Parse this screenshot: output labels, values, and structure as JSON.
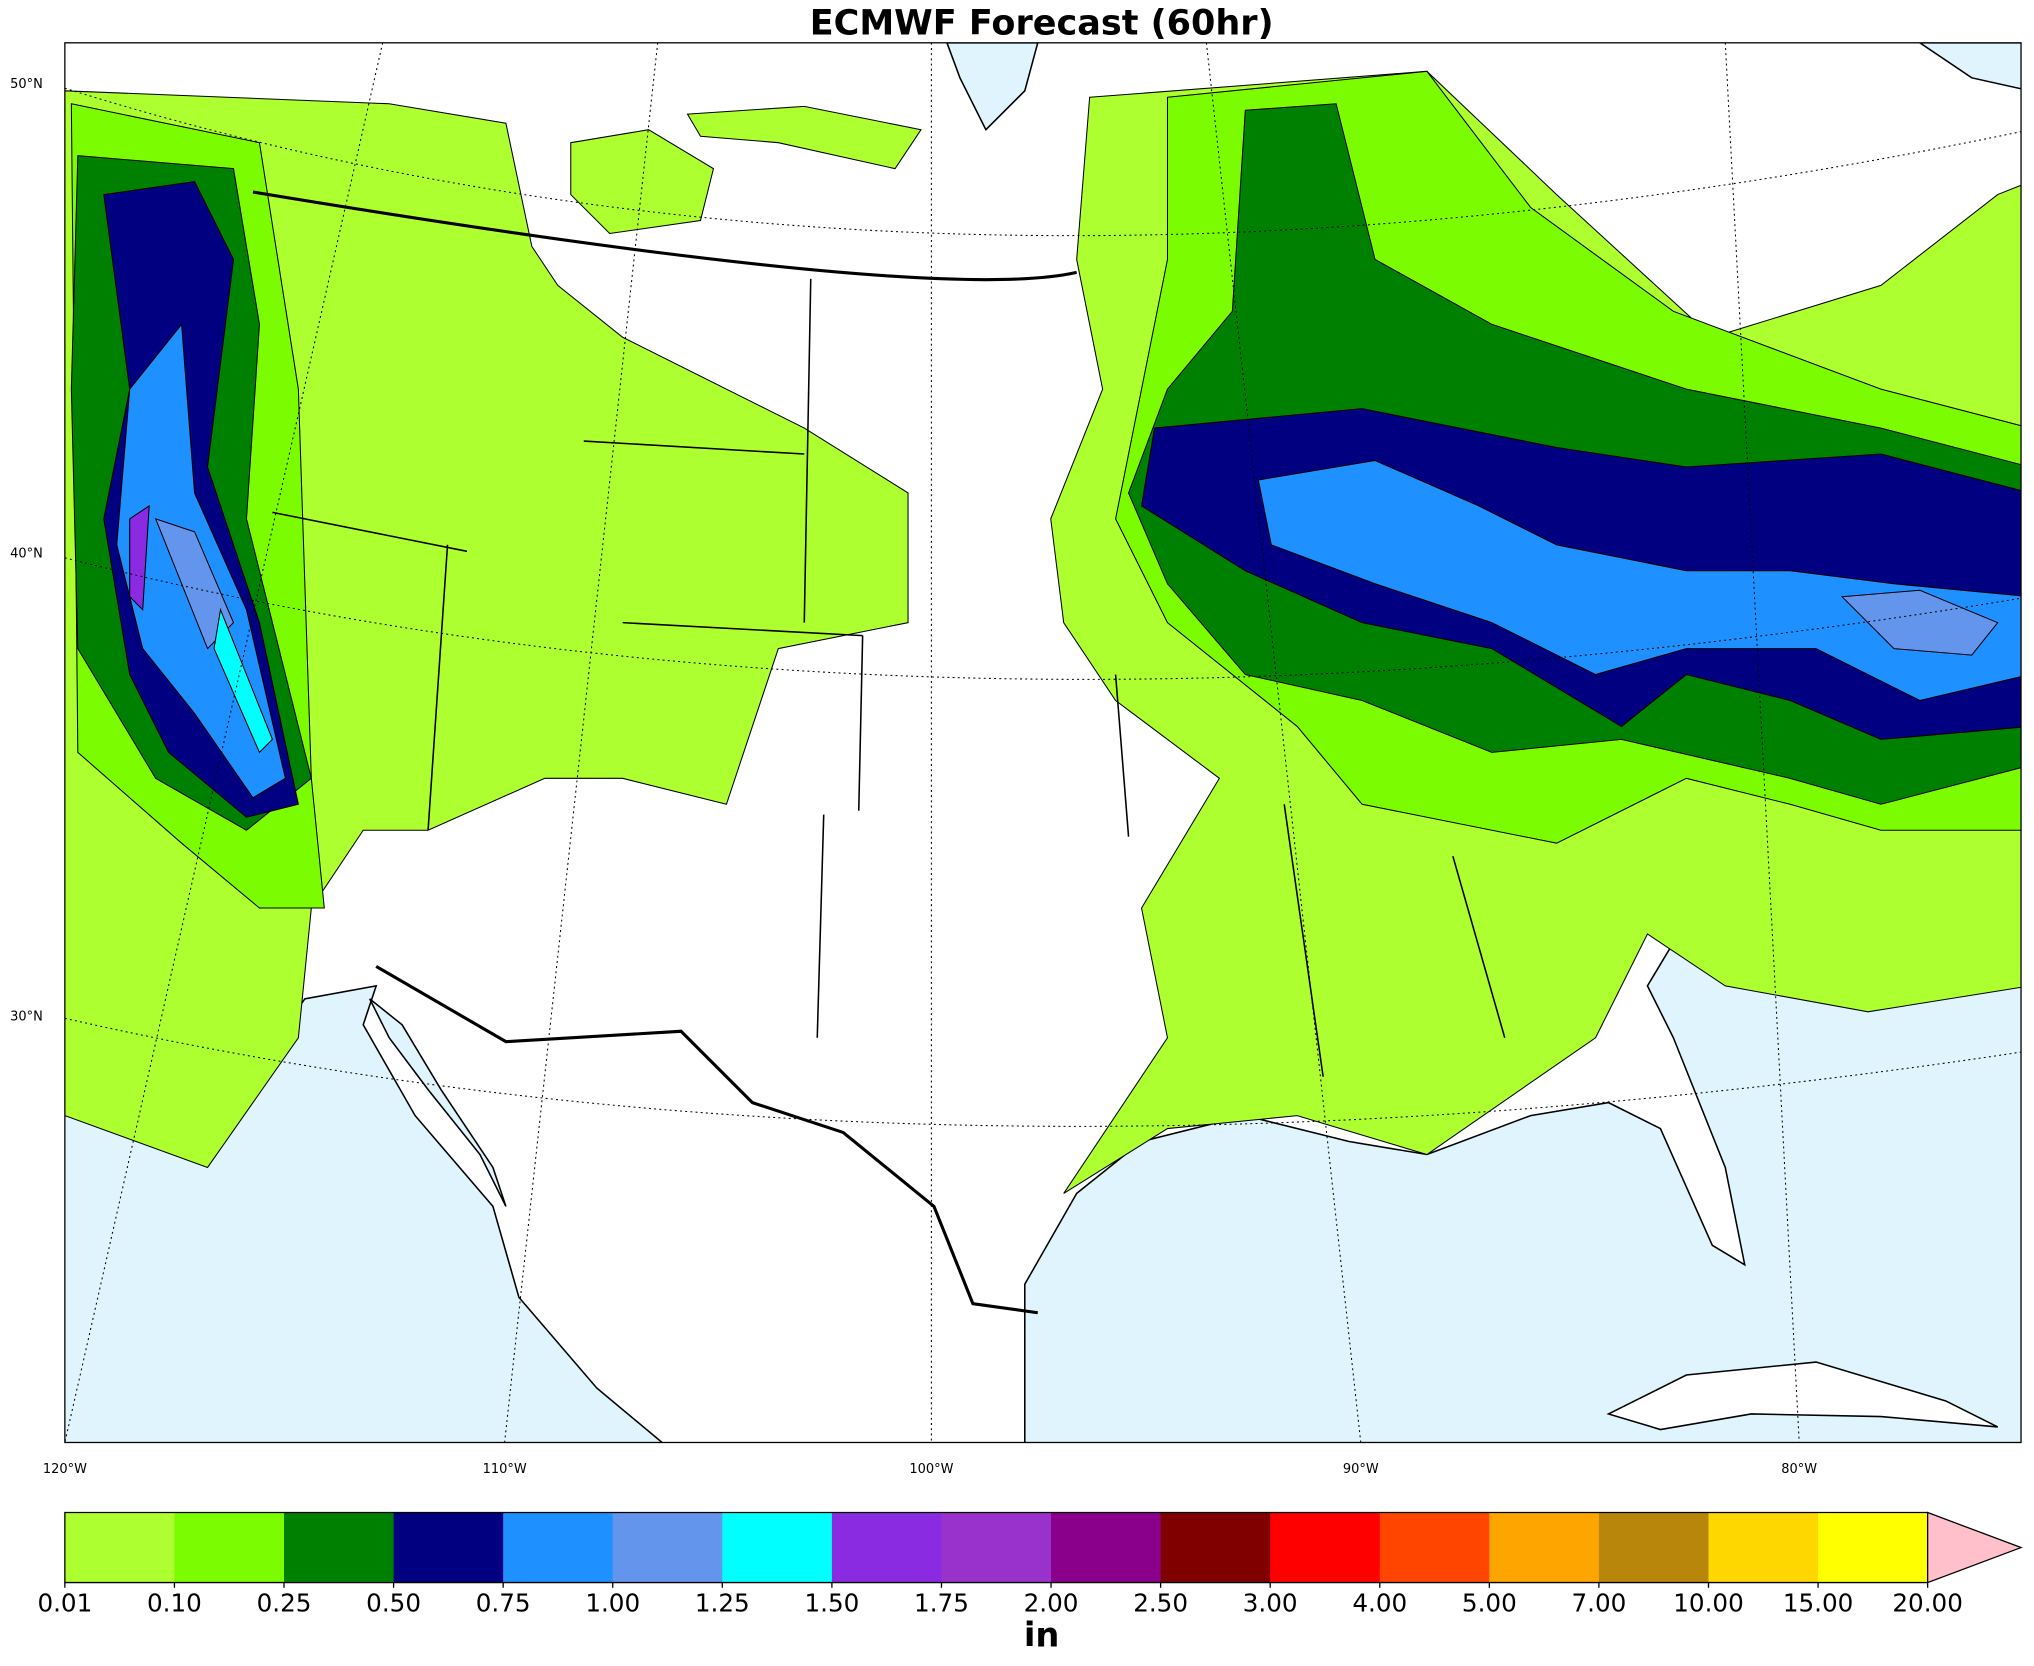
{
  "title": "ECMWF Forecast (60hr)",
  "map": {
    "lat_labels": [
      "50°N",
      "40°N",
      "30°N"
    ],
    "lon_labels": [
      "120°W",
      "110°W",
      "100°W",
      "90°W",
      "80°W"
    ]
  },
  "colorbar": {
    "ticks": [
      {
        "value": 0.01,
        "label": "0.01"
      },
      {
        "value": 0.1,
        "label": "0.10"
      },
      {
        "value": 0.25,
        "label": "0.25"
      },
      {
        "value": 0.5,
        "label": "0.50"
      },
      {
        "value": 0.75,
        "label": "0.75"
      },
      {
        "value": 1,
        "label": "1.00"
      },
      {
        "value": 1.25,
        "label": "1.25"
      },
      {
        "value": 1.5,
        "label": "1.50"
      },
      {
        "value": 1.75,
        "label": "1.75"
      },
      {
        "value": 2,
        "label": "2.00"
      },
      {
        "value": 2.5,
        "label": "2.50"
      },
      {
        "value": 3,
        "label": "3.00"
      },
      {
        "value": 4,
        "label": "4.00"
      },
      {
        "value": 5,
        "label": "5.00"
      },
      {
        "value": 7,
        "label": "7.00"
      },
      {
        "value": 10,
        "label": "10.00"
      },
      {
        "value": 15,
        "label": "15.00"
      },
      {
        "value": 20,
        "label": "20.00"
      }
    ],
    "colors": [
      "#adff2f",
      "#7cfc00",
      "#008000",
      "#000080",
      "#1e90ff",
      "#6495ed",
      "#00ffff",
      "#8a2be2",
      "#9932cc",
      "#8b008b",
      "#800000",
      "#ff0000",
      "#ff4500",
      "#ffa500",
      "#b8860b",
      "#ffd700",
      "#ffff00"
    ],
    "extend_color": "#ffc0cb",
    "unit": "in"
  }
}
